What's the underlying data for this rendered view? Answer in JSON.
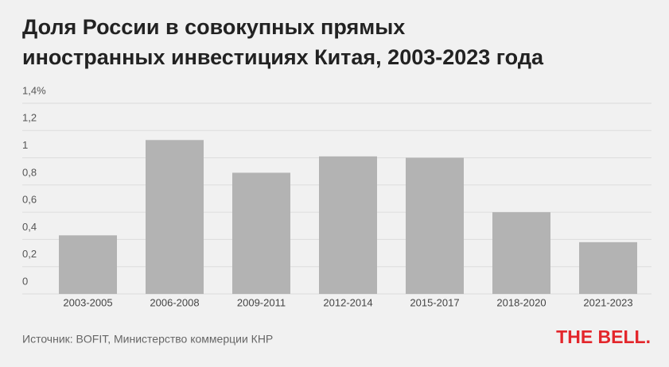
{
  "chart_data": {
    "type": "bar",
    "title": "Доля России в совокупных прямых иностранных инвестициях Китая, 2003-2023 года",
    "categories": [
      "2003-2005",
      "2006-2008",
      "2009-2011",
      "2012-2014",
      "2015-2017",
      "2018-2020",
      "2021-2023"
    ],
    "values": [
      0.43,
      1.13,
      0.89,
      1.01,
      1.0,
      0.6,
      0.38
    ],
    "color": "#b3b3b3",
    "ylim": [
      0,
      1.4
    ],
    "yticks": [
      0,
      {
        "value": 0.2,
        "label": "0,2"
      },
      {
        "value": 0.4,
        "label": "0,4"
      },
      {
        "value": 0.6,
        "label": "0,6"
      },
      {
        "value": 0.8,
        "label": "0,8"
      },
      1,
      {
        "value": 1.2,
        "label": "1,2"
      },
      {
        "value": 1.4,
        "label": "1,4%"
      }
    ],
    "grid": true,
    "source": "Источник: BOFIT, Министерство коммерции КНР",
    "logo": "THE BELL."
  }
}
